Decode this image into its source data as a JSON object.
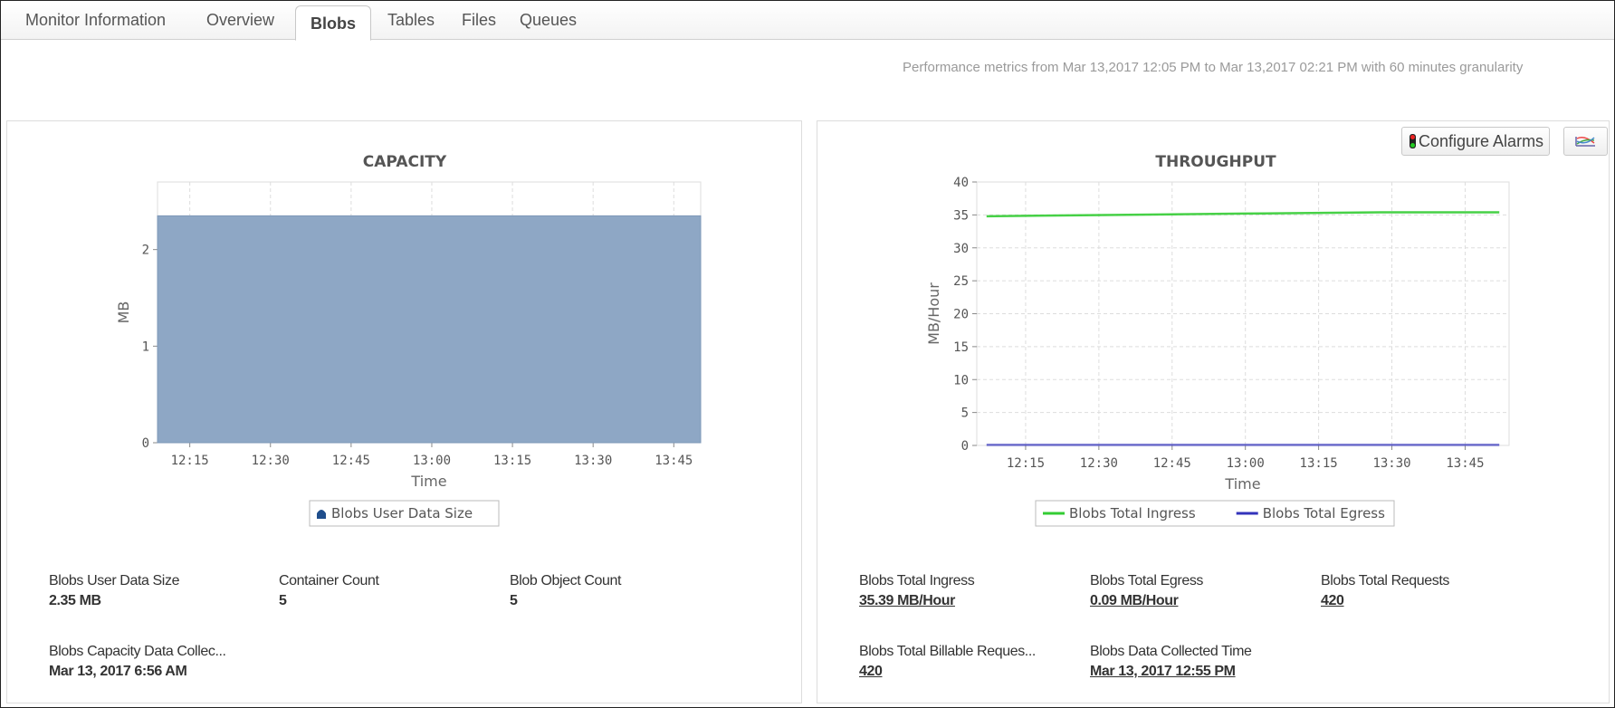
{
  "tabs": [
    {
      "label": "Monitor Information"
    },
    {
      "label": "Overview"
    },
    {
      "label": "Blobs",
      "active": true
    },
    {
      "label": "Tables"
    },
    {
      "label": "Files"
    },
    {
      "label": "Queues"
    }
  ],
  "performance_note": "Performance metrics from Mar 13,2017 12:05 PM to Mar 13,2017 02:21 PM with 60 minutes granularity",
  "buttons": {
    "configure_alarms": "Configure Alarms",
    "chart_icon": "line-chart-icon",
    "alarm_icon": "traffic-light-icon"
  },
  "colors": {
    "capacity_fill": "#8ea7c5",
    "ingress": "#33cc33",
    "egress": "#3333bb",
    "legend_capacity": "#1f4e8c"
  },
  "capacity_stats": [
    {
      "label": "Blobs User Data Size",
      "value": "2.35 MB"
    },
    {
      "label": "Container Count",
      "value": "5"
    },
    {
      "label": "Blob Object Count",
      "value": "5"
    },
    {
      "label": "Blobs Capacity Data Collec...",
      "value": "Mar 13, 2017 6:56 AM"
    }
  ],
  "throughput_stats": [
    {
      "label": "Blobs Total Ingress",
      "value": "35.39 MB/Hour"
    },
    {
      "label": "Blobs Total Egress",
      "value": "0.09 MB/Hour"
    },
    {
      "label": "Blobs Total Requests",
      "value": "420"
    },
    {
      "label": "Blobs Total Billable Reques...",
      "value": "420"
    },
    {
      "label": "Blobs Data Collected Time",
      "value": "Mar 13, 2017 12:55 PM"
    }
  ],
  "chart_data": [
    {
      "type": "area",
      "title": "CAPACITY",
      "xlabel": "Time",
      "ylabel": "MB",
      "xticks": [
        "12:15",
        "12:30",
        "12:45",
        "13:00",
        "13:15",
        "13:30",
        "13:45"
      ],
      "xlim": [
        "12:09",
        "13:50"
      ],
      "yticks": [
        0,
        1,
        2
      ],
      "ylim": [
        0,
        2.7
      ],
      "grid": true,
      "legend": "bottom",
      "series": [
        {
          "name": "Blobs User Data Size",
          "x": [
            "12:09",
            "13:50"
          ],
          "values": [
            2.35,
            2.35
          ]
        }
      ]
    },
    {
      "type": "line",
      "title": "THROUGHPUT",
      "xlabel": "Time",
      "ylabel": "MB/Hour",
      "xticks": [
        "12:15",
        "12:30",
        "12:45",
        "13:00",
        "13:15",
        "13:30",
        "13:45"
      ],
      "xlim": [
        "12:05",
        "13:54"
      ],
      "yticks": [
        0,
        5,
        10,
        15,
        20,
        25,
        30,
        35,
        40
      ],
      "ylim": [
        0,
        40
      ],
      "grid": true,
      "legend": "bottom",
      "series": [
        {
          "name": "Blobs Total Ingress",
          "x": [
            "12:07",
            "13:00",
            "13:28",
            "13:52"
          ],
          "values": [
            34.8,
            35.2,
            35.4,
            35.4
          ]
        },
        {
          "name": "Blobs Total Egress",
          "x": [
            "12:07",
            "13:00",
            "13:28",
            "13:52"
          ],
          "values": [
            0.09,
            0.09,
            0.09,
            0.09
          ]
        }
      ]
    }
  ]
}
